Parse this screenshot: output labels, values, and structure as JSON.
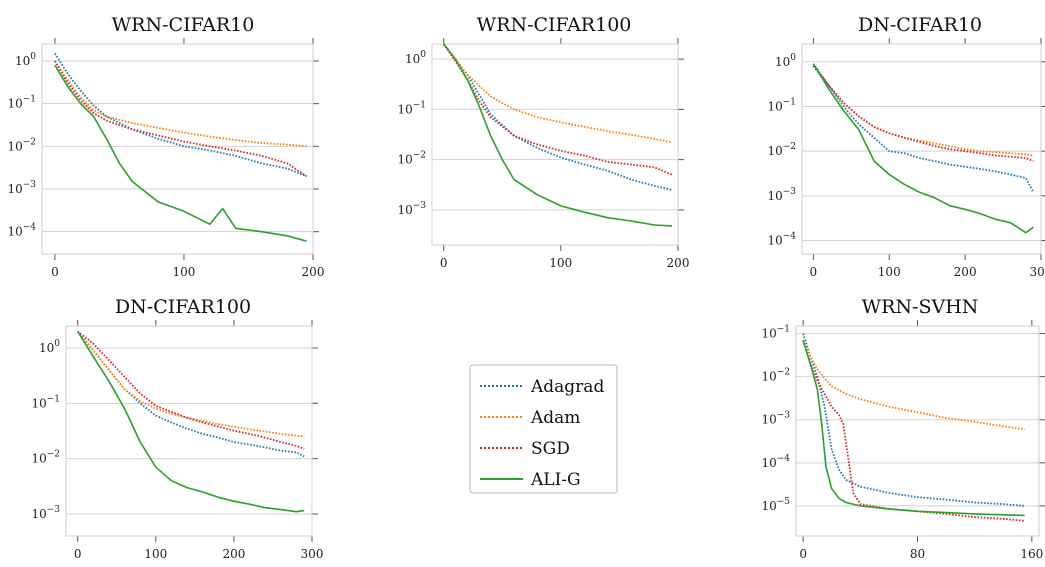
{
  "legend": {
    "entries": [
      {
        "label": "Adagrad",
        "color": "#1f77b4",
        "dash": "dotted"
      },
      {
        "label": "Adam",
        "color": "#ff7f0e",
        "dash": "dotted"
      },
      {
        "label": "SGD",
        "color": "#d62728",
        "dash": "dotted"
      },
      {
        "label": "ALI-G",
        "color": "#2ca02c",
        "dash": "solid"
      }
    ]
  },
  "chart_data": [
    {
      "type": "line",
      "title": "WRN-CIFAR10",
      "yscale": "log",
      "xlim": [
        -10,
        200
      ],
      "ylim": [
        3e-05,
        2.5
      ],
      "xticks": [
        0,
        100,
        200
      ],
      "yticks": [
        "10^0",
        "10^-1",
        "10^-2",
        "10^-3",
        "10^-4"
      ],
      "series": [
        {
          "name": "Adagrad",
          "x": [
            0,
            10,
            20,
            30,
            40,
            60,
            80,
            100,
            120,
            140,
            160,
            180,
            195
          ],
          "y": [
            1.5,
            0.5,
            0.2,
            0.09,
            0.05,
            0.025,
            0.015,
            0.01,
            0.008,
            0.006,
            0.004,
            0.003,
            0.002
          ]
        },
        {
          "name": "Adam",
          "x": [
            0,
            10,
            20,
            30,
            40,
            60,
            80,
            100,
            120,
            140,
            160,
            180,
            195
          ],
          "y": [
            1.0,
            0.35,
            0.14,
            0.07,
            0.05,
            0.035,
            0.027,
            0.021,
            0.017,
            0.014,
            0.012,
            0.011,
            0.01
          ]
        },
        {
          "name": "SGD",
          "x": [
            0,
            10,
            20,
            30,
            40,
            60,
            80,
            100,
            120,
            140,
            160,
            180,
            195
          ],
          "y": [
            1.0,
            0.3,
            0.12,
            0.06,
            0.04,
            0.025,
            0.018,
            0.013,
            0.01,
            0.008,
            0.006,
            0.004,
            0.002
          ]
        },
        {
          "name": "ALI-G",
          "x": [
            0,
            10,
            20,
            30,
            40,
            50,
            60,
            80,
            100,
            120,
            130,
            140,
            160,
            180,
            195
          ],
          "y": [
            0.8,
            0.25,
            0.1,
            0.05,
            0.015,
            0.004,
            0.0015,
            0.0005,
            0.0003,
            0.00015,
            0.00035,
            0.00012,
            0.0001,
            8e-05,
            6e-05
          ]
        }
      ]
    },
    {
      "type": "line",
      "title": "WRN-CIFAR100",
      "yscale": "log",
      "xlim": [
        -10,
        200
      ],
      "ylim": [
        0.0002,
        2.0
      ],
      "xticks": [
        0,
        100,
        200
      ],
      "yticks": [
        "10^0",
        "10^-1",
        "10^-2",
        "10^-3"
      ],
      "series": [
        {
          "name": "Adagrad",
          "x": [
            0,
            10,
            20,
            30,
            40,
            60,
            80,
            100,
            120,
            140,
            160,
            180,
            195
          ],
          "y": [
            2.0,
            1.0,
            0.5,
            0.2,
            0.08,
            0.03,
            0.017,
            0.011,
            0.008,
            0.006,
            0.004,
            0.003,
            0.0025
          ]
        },
        {
          "name": "Adam",
          "x": [
            0,
            10,
            20,
            30,
            40,
            60,
            80,
            100,
            120,
            140,
            160,
            180,
            195
          ],
          "y": [
            2.0,
            1.0,
            0.5,
            0.3,
            0.18,
            0.1,
            0.07,
            0.055,
            0.045,
            0.037,
            0.031,
            0.026,
            0.022
          ]
        },
        {
          "name": "SGD",
          "x": [
            0,
            10,
            20,
            30,
            40,
            60,
            80,
            100,
            120,
            140,
            160,
            180,
            195
          ],
          "y": [
            2.0,
            0.9,
            0.4,
            0.15,
            0.07,
            0.03,
            0.02,
            0.015,
            0.012,
            0.009,
            0.008,
            0.007,
            0.005
          ]
        },
        {
          "name": "ALI-G",
          "x": [
            0,
            10,
            20,
            30,
            40,
            50,
            60,
            80,
            100,
            120,
            140,
            160,
            180,
            195
          ],
          "y": [
            2.0,
            1.0,
            0.4,
            0.12,
            0.03,
            0.01,
            0.004,
            0.002,
            0.0012,
            0.0009,
            0.0007,
            0.0006,
            0.0005,
            0.00048
          ]
        }
      ]
    },
    {
      "type": "line",
      "title": "DN-CIFAR10",
      "yscale": "log",
      "xlim": [
        -15,
        300
      ],
      "ylim": [
        5e-05,
        2.5
      ],
      "xticks": [
        0,
        100,
        200,
        300
      ],
      "yticks": [
        "10^0",
        "10^-1",
        "10^-2",
        "10^-3",
        "10^-4"
      ],
      "series": [
        {
          "name": "Adagrad",
          "x": [
            0,
            20,
            40,
            60,
            80,
            100,
            120,
            140,
            160,
            180,
            200,
            220,
            240,
            260,
            280,
            290
          ],
          "y": [
            0.9,
            0.3,
            0.1,
            0.04,
            0.02,
            0.01,
            0.009,
            0.007,
            0.006,
            0.005,
            0.0045,
            0.004,
            0.0035,
            0.003,
            0.0025,
            0.0012
          ]
        },
        {
          "name": "Adam",
          "x": [
            0,
            20,
            40,
            60,
            80,
            100,
            120,
            140,
            160,
            180,
            200,
            220,
            240,
            260,
            280,
            290
          ],
          "y": [
            0.8,
            0.3,
            0.12,
            0.06,
            0.035,
            0.025,
            0.02,
            0.017,
            0.015,
            0.013,
            0.011,
            0.01,
            0.0095,
            0.009,
            0.0085,
            0.008
          ]
        },
        {
          "name": "SGD",
          "x": [
            0,
            20,
            40,
            60,
            80,
            100,
            120,
            140,
            160,
            180,
            200,
            220,
            240,
            260,
            280,
            290
          ],
          "y": [
            0.8,
            0.3,
            0.12,
            0.06,
            0.035,
            0.025,
            0.02,
            0.016,
            0.013,
            0.011,
            0.01,
            0.009,
            0.008,
            0.0075,
            0.007,
            0.006
          ]
        },
        {
          "name": "ALI-G",
          "x": [
            0,
            20,
            40,
            60,
            80,
            100,
            120,
            140,
            160,
            180,
            200,
            220,
            240,
            260,
            280,
            290
          ],
          "y": [
            0.9,
            0.25,
            0.08,
            0.03,
            0.006,
            0.003,
            0.0018,
            0.0012,
            0.0009,
            0.0006,
            0.0005,
            0.0004,
            0.0003,
            0.00025,
            0.00015,
            0.0002
          ]
        }
      ]
    },
    {
      "type": "line",
      "title": "DN-CIFAR100",
      "yscale": "log",
      "xlim": [
        -15,
        300
      ],
      "ylim": [
        0.0004,
        2.5
      ],
      "xticks": [
        0,
        100,
        200,
        300
      ],
      "yticks": [
        "10^0",
        "10^-1",
        "10^-2",
        "10^-3"
      ],
      "series": [
        {
          "name": "Adagrad",
          "x": [
            0,
            20,
            40,
            60,
            80,
            100,
            120,
            140,
            160,
            180,
            200,
            220,
            240,
            260,
            280,
            290
          ],
          "y": [
            2.0,
            0.9,
            0.4,
            0.18,
            0.1,
            0.06,
            0.045,
            0.035,
            0.028,
            0.024,
            0.02,
            0.018,
            0.016,
            0.014,
            0.013,
            0.011
          ]
        },
        {
          "name": "Adam",
          "x": [
            0,
            20,
            40,
            60,
            80,
            100,
            120,
            140,
            160,
            180,
            200,
            220,
            240,
            260,
            280,
            290
          ],
          "y": [
            2.0,
            0.9,
            0.4,
            0.18,
            0.11,
            0.08,
            0.065,
            0.055,
            0.048,
            0.042,
            0.038,
            0.034,
            0.031,
            0.028,
            0.026,
            0.025
          ]
        },
        {
          "name": "SGD",
          "x": [
            0,
            20,
            40,
            60,
            80,
            100,
            120,
            140,
            160,
            180,
            200,
            220,
            240,
            260,
            280,
            290
          ],
          "y": [
            2.0,
            1.2,
            0.6,
            0.3,
            0.15,
            0.09,
            0.07,
            0.055,
            0.045,
            0.038,
            0.032,
            0.028,
            0.024,
            0.02,
            0.017,
            0.015
          ]
        },
        {
          "name": "ALI-G",
          "x": [
            0,
            20,
            40,
            60,
            80,
            100,
            120,
            140,
            160,
            180,
            200,
            220,
            240,
            260,
            280,
            290
          ],
          "y": [
            2.0,
            0.7,
            0.25,
            0.08,
            0.02,
            0.007,
            0.004,
            0.003,
            0.0025,
            0.002,
            0.0017,
            0.0015,
            0.0013,
            0.0012,
            0.0011,
            0.00115
          ]
        }
      ]
    },
    {
      "type": "line",
      "title": "WRN-SVHN",
      "yscale": "log",
      "xlim": [
        -5,
        165
      ],
      "ylim": [
        2e-06,
        0.15
      ],
      "xticks": [
        0,
        80,
        160
      ],
      "yticks": [
        "10^-1",
        "10^-2",
        "10^-3",
        "10^-4",
        "10^-5"
      ],
      "series": [
        {
          "name": "Adagrad",
          "x": [
            0,
            5,
            10,
            15,
            20,
            25,
            30,
            40,
            60,
            80,
            100,
            120,
            140,
            155
          ],
          "y": [
            0.1,
            0.03,
            0.01,
            0.002,
            0.0002,
            7e-05,
            4e-05,
            2.8e-05,
            2e-05,
            1.6e-05,
            1.4e-05,
            1.2e-05,
            1.1e-05,
            1e-05
          ]
        },
        {
          "name": "Adam",
          "x": [
            0,
            5,
            10,
            15,
            20,
            30,
            40,
            60,
            80,
            100,
            120,
            140,
            155
          ],
          "y": [
            0.07,
            0.03,
            0.015,
            0.009,
            0.006,
            0.004,
            0.003,
            0.002,
            0.0015,
            0.0011,
            0.0009,
            0.0007,
            0.0006
          ]
        },
        {
          "name": "SGD",
          "x": [
            0,
            5,
            10,
            15,
            20,
            25,
            28,
            32,
            35,
            40,
            60,
            80,
            100,
            120,
            140,
            155
          ],
          "y": [
            0.07,
            0.02,
            0.008,
            0.004,
            0.002,
            0.0013,
            0.0008,
            0.0001,
            2e-05,
            1.1e-05,
            8.5e-06,
            7.5e-06,
            6.5e-06,
            5.5e-06,
            5e-06,
            4.5e-06
          ]
        },
        {
          "name": "ALI-G",
          "x": [
            0,
            5,
            10,
            13,
            16,
            20,
            25,
            30,
            40,
            60,
            80,
            100,
            120,
            140,
            155
          ],
          "y": [
            0.07,
            0.02,
            0.005,
            0.0008,
            8e-05,
            2.5e-05,
            1.5e-05,
            1.2e-05,
            1e-05,
            8.5e-06,
            7.5e-06,
            7e-06,
            6.5e-06,
            6.2e-06,
            6e-06
          ]
        }
      ]
    }
  ]
}
